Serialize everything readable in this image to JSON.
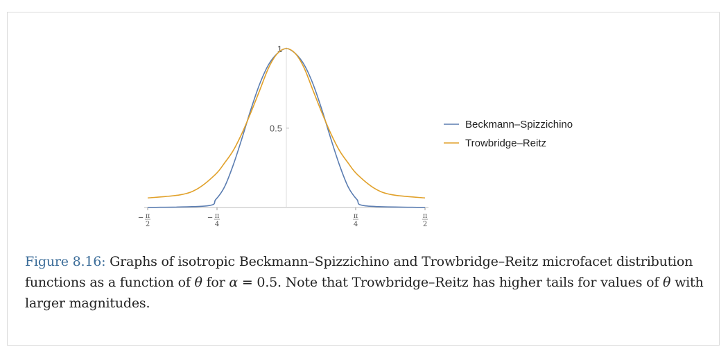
{
  "chart_data": {
    "type": "line",
    "title": "",
    "xlabel": "",
    "ylabel": "",
    "xlim": [
      -1.5708,
      1.5708
    ],
    "ylim": [
      0,
      1
    ],
    "grid": false,
    "legend_placement": "right",
    "x_ticks": [
      {
        "value": -1.5708,
        "sign": "−",
        "num": "π",
        "den": "2"
      },
      {
        "value": -0.7854,
        "sign": "−",
        "num": "π",
        "den": "4"
      },
      {
        "value": 0.7854,
        "sign": "",
        "num": "π",
        "den": "4"
      },
      {
        "value": 1.5708,
        "sign": "",
        "num": "π",
        "den": "2"
      }
    ],
    "y_ticks": [
      {
        "value": 0.5,
        "label": "0.5"
      },
      {
        "value": 1,
        "label": "1"
      }
    ],
    "alpha": 0.5,
    "series": [
      {
        "name": "Beckmann–Spizzichino",
        "color": "#5b7db1",
        "x": [
          -1.5708,
          -0.9,
          -0.8,
          -0.7,
          -0.6,
          -0.5,
          -0.4,
          -0.3,
          -0.2,
          -0.1,
          0,
          0.1,
          0.2,
          0.3,
          0.4,
          0.5,
          0.6,
          0.7,
          0.8,
          0.9,
          1.5708
        ],
        "y": [
          0,
          0.01,
          0.05,
          0.13,
          0.27,
          0.44,
          0.62,
          0.78,
          0.9,
          0.97,
          1,
          0.97,
          0.9,
          0.78,
          0.62,
          0.44,
          0.27,
          0.13,
          0.05,
          0.01,
          0
        ]
      },
      {
        "name": "Trowbridge–Reitz",
        "color": "#e1a12a",
        "x": [
          -1.5708,
          -1.2,
          -1.0,
          -0.8,
          -0.7,
          -0.6,
          -0.5,
          -0.4,
          -0.3,
          -0.2,
          -0.1,
          0,
          0.1,
          0.2,
          0.3,
          0.4,
          0.5,
          0.6,
          0.7,
          0.8,
          1.0,
          1.2,
          1.5708
        ],
        "y": [
          0.06,
          0.08,
          0.12,
          0.21,
          0.28,
          0.36,
          0.47,
          0.6,
          0.74,
          0.88,
          0.97,
          1,
          0.97,
          0.88,
          0.74,
          0.6,
          0.47,
          0.36,
          0.28,
          0.21,
          0.12,
          0.08,
          0.06
        ]
      }
    ]
  },
  "caption": {
    "label": "Figure 8.16:",
    "text1": " Graphs of isotropic Beckmann–Spizzichino and Trowbridge–Reitz microfacet distribution functions as a function of ",
    "theta": "θ",
    "text2": " for ",
    "alpha_sym": "α",
    "eq": " = 0.5",
    "text3": ". Note that Trowbridge–Reitz has higher tails for values of ",
    "text4": " with larger magnitudes."
  }
}
